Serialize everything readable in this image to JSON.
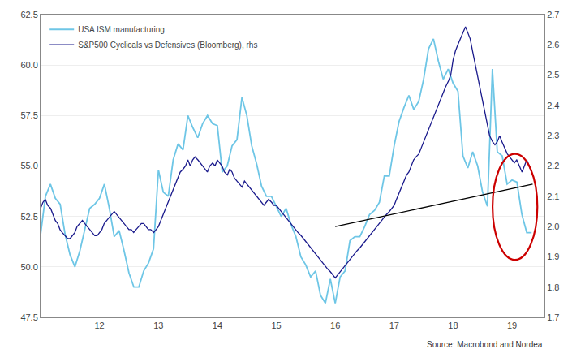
{
  "chart_data": {
    "type": "line",
    "annotations": [
      "Source: Macrobond and Nordea"
    ],
    "legend": "upper left",
    "grid": "y",
    "xlim": [
      11.0,
      19.55
    ],
    "xticks": [
      12,
      13,
      14,
      15,
      16,
      17,
      18,
      19
    ],
    "ylim": [
      47.5,
      62.5
    ],
    "yticks": [
      47.5,
      {
        "value": 50.0,
        "label": "50.0"
      },
      52.5,
      {
        "value": 55.0,
        "label": "55.0"
      },
      57.5,
      {
        "value": 60.0,
        "label": "60.0"
      },
      62.5
    ],
    "y2lim": [
      1.7,
      2.7
    ],
    "y2ticks": [
      1.7,
      1.8,
      1.9,
      {
        "value": 2.0,
        "label": "2.0"
      },
      2.1,
      2.2,
      2.3,
      2.4,
      2.5,
      2.6,
      2.7
    ],
    "series": [
      {
        "name": "USA ISM manufacturing",
        "color": "#6EC6E6",
        "x": [
          11.0,
          11.083,
          11.167,
          11.25,
          11.333,
          11.417,
          11.5,
          11.583,
          11.667,
          11.75,
          11.833,
          11.917,
          12.0,
          12.083,
          12.167,
          12.25,
          12.333,
          12.417,
          12.5,
          12.583,
          12.667,
          12.75,
          12.833,
          12.917,
          13.0,
          13.083,
          13.167,
          13.25,
          13.333,
          13.417,
          13.5,
          13.583,
          13.667,
          13.75,
          13.833,
          13.917,
          14.0,
          14.083,
          14.167,
          14.25,
          14.333,
          14.417,
          14.5,
          14.583,
          14.667,
          14.75,
          14.833,
          14.917,
          15.0,
          15.083,
          15.167,
          15.25,
          15.333,
          15.417,
          15.5,
          15.583,
          15.667,
          15.75,
          15.833,
          15.917,
          16.0,
          16.083,
          16.167,
          16.25,
          16.333,
          16.417,
          16.5,
          16.583,
          16.667,
          16.75,
          16.833,
          16.917,
          17.0,
          17.083,
          17.167,
          17.25,
          17.333,
          17.417,
          17.5,
          17.583,
          17.667,
          17.75,
          17.833,
          17.917,
          18.0,
          18.083,
          18.167,
          18.25,
          18.333,
          18.417,
          18.5,
          18.583,
          18.667,
          18.75,
          18.833,
          18.917,
          19.0,
          19.083,
          19.167,
          19.25,
          19.333
        ],
        "values": [
          51.6,
          53.5,
          54.1,
          53.4,
          53.1,
          51.6,
          50.6,
          50.0,
          50.8,
          51.9,
          52.9,
          53.1,
          53.4,
          54.1,
          52.9,
          51.5,
          51.8,
          50.8,
          49.7,
          49.0,
          49.0,
          49.8,
          50.2,
          50.9,
          54.8,
          53.7,
          53.5,
          55.3,
          56.1,
          55.8,
          57.5,
          56.9,
          56.4,
          57.1,
          57.5,
          57.1,
          57.0,
          54.7,
          55.0,
          56.0,
          56.3,
          58.4,
          57.5,
          56.0,
          55.1,
          54.0,
          53.5,
          53.5,
          53.0,
          52.5,
          52.9,
          52.1,
          51.5,
          50.5,
          50.1,
          49.5,
          49.8,
          48.6,
          48.2,
          49.4,
          48.2,
          49.5,
          49.8,
          51.3,
          51.5,
          51.5,
          52.0,
          52.6,
          52.8,
          53.2,
          54.5,
          54.5,
          56.0,
          57.2,
          57.9,
          58.5,
          57.8,
          58.2,
          59.3,
          60.8,
          61.3,
          60.2,
          59.3,
          59.8,
          59.1,
          58.7,
          55.5,
          54.9,
          55.7,
          55.0,
          53.7,
          53.0,
          59.8,
          55.7,
          55.5,
          54.1,
          54.3,
          54.2,
          52.6,
          51.7,
          51.7
        ]
      },
      {
        "name": "S&P500 Cyclicals vs Defensives (Bloomberg), rhs",
        "color": "#1A1A8C",
        "axis": "y2",
        "x": [
          11.0,
          11.04,
          11.08,
          11.12,
          11.17,
          11.21,
          11.25,
          11.29,
          11.33,
          11.37,
          11.42,
          11.46,
          11.5,
          11.54,
          11.58,
          11.62,
          11.67,
          11.71,
          11.75,
          11.79,
          11.83,
          11.87,
          11.92,
          11.96,
          12.0,
          12.04,
          12.08,
          12.12,
          12.17,
          12.21,
          12.25,
          12.29,
          12.33,
          12.37,
          12.42,
          12.46,
          12.5,
          12.54,
          12.58,
          12.62,
          12.67,
          12.71,
          12.75,
          12.79,
          12.83,
          12.87,
          12.92,
          12.96,
          13.0,
          13.04,
          13.08,
          13.12,
          13.17,
          13.21,
          13.25,
          13.29,
          13.33,
          13.37,
          13.42,
          13.46,
          13.5,
          13.54,
          13.58,
          13.62,
          13.67,
          13.71,
          13.75,
          13.79,
          13.83,
          13.87,
          13.92,
          13.96,
          14.0,
          14.04,
          14.08,
          14.12,
          14.17,
          14.21,
          14.25,
          14.29,
          14.33,
          14.37,
          14.42,
          14.46,
          14.5,
          14.54,
          14.58,
          14.62,
          14.67,
          14.71,
          14.75,
          14.79,
          14.83,
          14.87,
          14.92,
          14.96,
          15.0,
          15.04,
          15.08,
          15.12,
          15.17,
          15.21,
          15.25,
          15.29,
          15.33,
          15.37,
          15.42,
          15.46,
          15.5,
          15.54,
          15.58,
          15.62,
          15.67,
          15.71,
          15.75,
          15.79,
          15.83,
          15.87,
          15.92,
          15.96,
          16.0,
          16.04,
          16.08,
          16.12,
          16.17,
          16.21,
          16.25,
          16.29,
          16.33,
          16.37,
          16.42,
          16.46,
          16.5,
          16.54,
          16.58,
          16.62,
          16.67,
          16.71,
          16.75,
          16.79,
          16.83,
          16.87,
          16.92,
          16.96,
          17.0,
          17.04,
          17.08,
          17.12,
          17.17,
          17.21,
          17.25,
          17.29,
          17.33,
          17.37,
          17.42,
          17.46,
          17.5,
          17.54,
          17.58,
          17.62,
          17.67,
          17.71,
          17.75,
          17.79,
          17.83,
          17.87,
          17.92,
          17.96,
          18.0,
          18.04,
          18.08,
          18.12,
          18.17,
          18.21,
          18.25,
          18.29,
          18.33,
          18.37,
          18.42,
          18.46,
          18.5,
          18.54,
          18.58,
          18.62,
          18.67,
          18.71,
          18.75,
          18.79,
          18.83,
          18.87,
          18.92,
          18.96,
          19.0,
          19.04,
          19.08,
          19.12,
          19.17,
          19.21,
          19.25,
          19.29,
          19.33
        ],
        "values": [
          2.06,
          2.08,
          2.09,
          2.07,
          2.06,
          2.04,
          2.02,
          2.01,
          1.99,
          1.98,
          1.97,
          1.96,
          1.96,
          1.97,
          1.98,
          2.0,
          2.01,
          2.02,
          2.01,
          2.0,
          1.99,
          1.98,
          1.97,
          1.97,
          1.98,
          1.99,
          2.01,
          2.02,
          2.03,
          2.04,
          2.05,
          2.04,
          2.03,
          2.02,
          2.01,
          2.0,
          1.99,
          1.99,
          1.98,
          1.99,
          2.0,
          2.01,
          2.01,
          2.0,
          1.99,
          1.99,
          1.98,
          1.99,
          2.0,
          2.02,
          2.04,
          2.06,
          2.08,
          2.1,
          2.12,
          2.14,
          2.16,
          2.18,
          2.19,
          2.2,
          2.22,
          2.2,
          2.22,
          2.23,
          2.22,
          2.21,
          2.2,
          2.19,
          2.18,
          2.2,
          2.21,
          2.2,
          2.22,
          2.21,
          2.2,
          2.18,
          2.17,
          2.19,
          2.18,
          2.16,
          2.15,
          2.14,
          2.13,
          2.15,
          2.14,
          2.13,
          2.12,
          2.11,
          2.1,
          2.09,
          2.08,
          2.07,
          2.08,
          2.09,
          2.08,
          2.07,
          2.07,
          2.06,
          2.05,
          2.04,
          2.03,
          2.02,
          2.01,
          2.0,
          1.99,
          1.98,
          1.97,
          1.96,
          1.95,
          1.94,
          1.93,
          1.92,
          1.91,
          1.9,
          1.89,
          1.88,
          1.87,
          1.86,
          1.85,
          1.84,
          1.83,
          1.84,
          1.85,
          1.86,
          1.87,
          1.88,
          1.89,
          1.9,
          1.91,
          1.92,
          1.93,
          1.94,
          1.95,
          1.96,
          1.97,
          1.98,
          1.99,
          2.0,
          2.01,
          2.02,
          2.03,
          2.04,
          2.05,
          2.06,
          2.07,
          2.09,
          2.11,
          2.13,
          2.15,
          2.17,
          2.18,
          2.2,
          2.22,
          2.23,
          2.24,
          2.26,
          2.28,
          2.3,
          2.32,
          2.34,
          2.36,
          2.38,
          2.4,
          2.42,
          2.44,
          2.46,
          2.48,
          2.5,
          2.55,
          2.58,
          2.6,
          2.62,
          2.64,
          2.66,
          2.64,
          2.62,
          2.58,
          2.54,
          2.5,
          2.46,
          2.42,
          2.38,
          2.34,
          2.3,
          2.28,
          2.27,
          2.28,
          2.3,
          2.28,
          2.26,
          2.24,
          2.23,
          2.22,
          2.21,
          2.22,
          2.2,
          2.18,
          2.2,
          2.22,
          2.2,
          2.18
        ]
      },
      {
        "color": "black",
        "axis": "y2",
        "x": [
          16.0,
          19.35
        ],
        "values": [
          2.0,
          2.14
        ]
      }
    ],
    "shapes": [
      {
        "type": "ellipse",
        "axis": "y2",
        "x": 19.05,
        "y": 2.065,
        "rx": 0.38,
        "ry": 0.175,
        "color": "#cc0000"
      }
    ]
  }
}
